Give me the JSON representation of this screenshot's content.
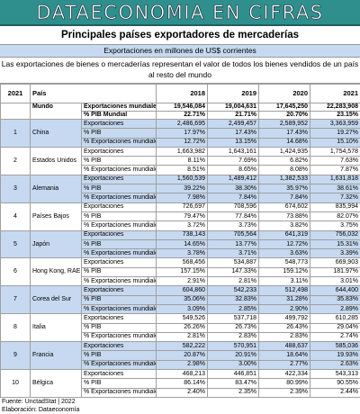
{
  "header": {
    "banner": "DATAECONOMIA EN CIFRAS",
    "title": "Principales países exportadores de mercaderías",
    "subtitle": "Exportaciones en millones de US$ corrientes",
    "description": "Las exportaciones de bienes o mercaderías representan el valor de todos los bienes vendidos de un país al resto del mundo"
  },
  "table": {
    "columns": {
      "rank": "2021",
      "country": "País",
      "years": [
        "2018",
        "2019",
        "2020",
        "2021"
      ]
    },
    "world": {
      "name": "Mundo",
      "rows": [
        {
          "label": "Exportaciones mundiales",
          "values": [
            "19,546,084",
            "19,004,631",
            "17,645,250",
            "22,283,908"
          ]
        },
        {
          "label": "% PIB Mundial",
          "values": [
            "22.71%",
            "21.71%",
            "20.70%",
            "23.15%"
          ]
        }
      ]
    },
    "countries": [
      {
        "rank": 1,
        "name": "China",
        "rows": [
          {
            "label": "Exportaciones",
            "values": [
              "2,486,695",
              "2,499,457",
              "2,589,952",
              "3,363,959"
            ]
          },
          {
            "label": "% PIB",
            "values": [
              "17.97%",
              "17.43%",
              "17.43%",
              "19.27%"
            ]
          },
          {
            "label": "% Exportaciones mundiales",
            "values": [
              "12.72%",
              "13.15%",
              "14.68%",
              "15.10%"
            ]
          }
        ]
      },
      {
        "rank": 2,
        "name": "Estados Unidos",
        "rows": [
          {
            "label": "Exportaciones",
            "values": [
              "1,663,982",
              "1,643,161",
              "1,424,935",
              "1,754,578"
            ]
          },
          {
            "label": "% PIB",
            "values": [
              "8.11%",
              "7.69%",
              "6.82%",
              "7.63%"
            ]
          },
          {
            "label": "% Exportaciones mundiales",
            "values": [
              "8.51%",
              "8.65%",
              "8.08%",
              "7.87%"
            ]
          }
        ]
      },
      {
        "rank": 3,
        "name": "Alemania",
        "rows": [
          {
            "label": "Exportaciones",
            "values": [
              "1,560,539",
              "1,489,412",
              "1,382,533",
              "1,631,818"
            ]
          },
          {
            "label": "% PIB",
            "values": [
              "39.22%",
              "38.30%",
              "35.97%",
              "38.61%"
            ]
          },
          {
            "label": "% Exportaciones mundiales",
            "values": [
              "7.98%",
              "7.84%",
              "7.84%",
              "7.32%"
            ]
          }
        ]
      },
      {
        "rank": 4,
        "name": "Países Bajos",
        "rows": [
          {
            "label": "Exportaciones",
            "values": [
              "726,697",
              "708,596",
              "674,602",
              "835,994"
            ]
          },
          {
            "label": "% PIB",
            "values": [
              "79.47%",
              "77.84%",
              "73.88%",
              "82.07%"
            ]
          },
          {
            "label": "% Exportaciones mundiales",
            "values": [
              "3.72%",
              "3.73%",
              "3.82%",
              "3.75%"
            ]
          }
        ]
      },
      {
        "rank": 5,
        "name": "Japón",
        "rows": [
          {
            "label": "Exportaciones",
            "values": [
              "738,143",
              "705,564",
              "641,319",
              "756,032"
            ]
          },
          {
            "label": "% PIB",
            "values": [
              "14.65%",
              "13.77%",
              "12.72%",
              "15.31%"
            ]
          },
          {
            "label": "% Exportaciones mundiales",
            "values": [
              "3.78%",
              "3.71%",
              "3.63%",
              "3.39%"
            ]
          }
        ]
      },
      {
        "rank": 6,
        "name": "Hong Kong, RAE China",
        "rows": [
          {
            "label": "Exportaciones",
            "values": [
              "568,456",
              "534,887",
              "548,773",
              "669,903"
            ]
          },
          {
            "label": "% PIB",
            "values": [
              "157.15%",
              "147.33%",
              "159.12%",
              "181.97%"
            ]
          },
          {
            "label": "% Exportaciones mundiales",
            "values": [
              "2.91%",
              "2.81%",
              "3.11%",
              "3.01%"
            ]
          }
        ]
      },
      {
        "rank": 7,
        "name": "Corea del Sur",
        "rows": [
          {
            "label": "Exportaciones",
            "values": [
              "604,860",
              "542,233",
              "512,498",
              "644,400"
            ]
          },
          {
            "label": "% PIB",
            "values": [
              "35.06%",
              "32.83%",
              "31.28%",
              "35.83%"
            ]
          },
          {
            "label": "% Exportaciones mundiales",
            "values": [
              "3.09%",
              "2.85%",
              "2.90%",
              "2.89%"
            ]
          }
        ]
      },
      {
        "rank": 8,
        "name": "Italia",
        "rows": [
          {
            "label": "Exportaciones",
            "values": [
              "549,526",
              "537,718",
              "499,792",
              "610,285"
            ]
          },
          {
            "label": "% PIB",
            "values": [
              "26.26%",
              "26.73%",
              "26.43%",
              "29.04%"
            ]
          },
          {
            "label": "% Exportaciones mundiales",
            "values": [
              "2.81%",
              "2.83%",
              "2.83%",
              "2.74%"
            ]
          }
        ]
      },
      {
        "rank": 9,
        "name": "Francia",
        "rows": [
          {
            "label": "Exportaciones",
            "values": [
              "582,222",
              "570,951",
              "488,637",
              "585,036"
            ]
          },
          {
            "label": "% PIB",
            "values": [
              "20.87%",
              "20.91%",
              "18.64%",
              "19.93%"
            ]
          },
          {
            "label": "% Exportaciones mundiales",
            "values": [
              "2.98%",
              "3.00%",
              "2.77%",
              "2.63%"
            ]
          }
        ]
      },
      {
        "rank": 10,
        "name": "Bélgica",
        "rows": [
          {
            "label": "Exportaciones",
            "values": [
              "468,213",
              "446,851",
              "422,334",
              "543,313"
            ]
          },
          {
            "label": "% PIB",
            "values": [
              "86.14%",
              "83.47%",
              "80.99%",
              "90.55%"
            ]
          },
          {
            "label": "% Exportaciones mundiales",
            "values": [
              "2.40%",
              "2.35%",
              "2.39%",
              "2.44%"
            ]
          }
        ]
      }
    ]
  },
  "footer": {
    "source": "Fuente: UnctadStat | 2022",
    "author": "Elaboración: Dataeconomía"
  }
}
